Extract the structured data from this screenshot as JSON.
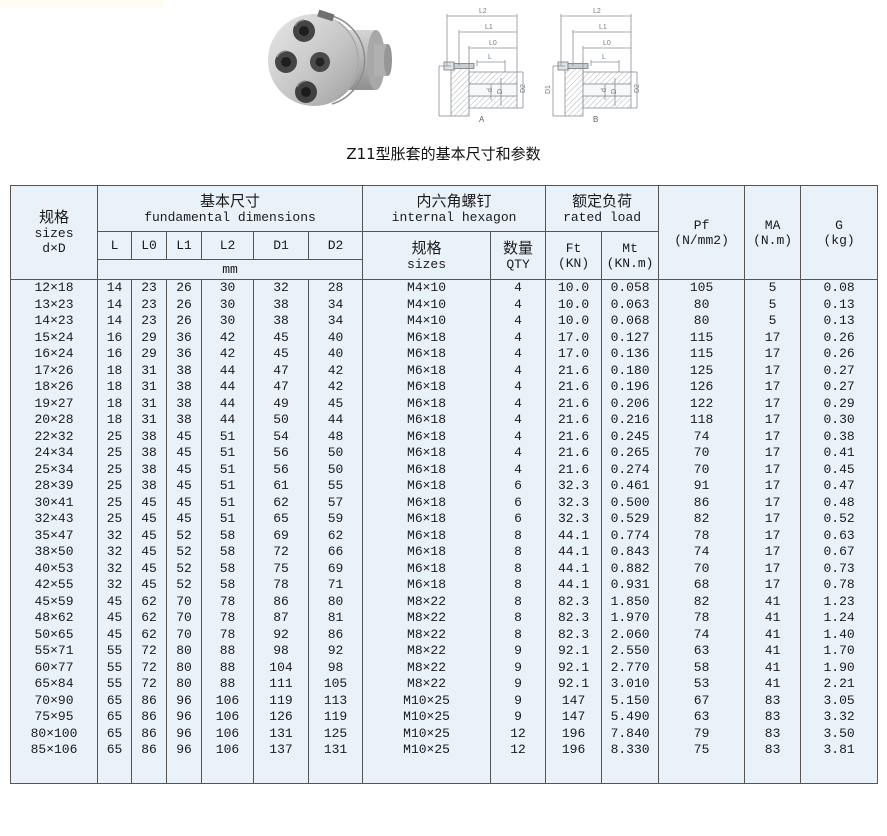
{
  "page": {
    "title": "Z11型胀套的基本尺寸和参数"
  },
  "drawing": {
    "views": [
      {
        "label": "A",
        "length_dims": [
          "L2",
          "L1",
          "L0",
          "L"
        ],
        "diameter_dims": [
          "D1",
          "d",
          "D",
          "D2"
        ]
      },
      {
        "label": "B",
        "length_dims": [
          "L2",
          "L1",
          "L0",
          "L"
        ],
        "diameter_dims": [
          "D1",
          "d",
          "D",
          "D2"
        ]
      }
    ]
  },
  "table": {
    "headers": {
      "spec_lines": [
        "规格",
        "sizes",
        "d×D"
      ],
      "basic_cn": "基本尺寸",
      "basic_en": "fundamental dimensions",
      "hex_cn": "内六角螺钉",
      "hex_en": "internal hexagon",
      "load_cn": "额定负荷",
      "load_en": "rated load",
      "pf_lines": [
        "Pf",
        "(N/mm2)"
      ],
      "ma_lines": [
        "MA",
        "(N.m)"
      ],
      "g_lines": [
        "G",
        "(kg)"
      ],
      "dims": [
        "L",
        "L0",
        "L1",
        "L2",
        "D1",
        "D2"
      ],
      "unit": "mm",
      "screw_spec_lines": [
        "规格",
        "sizes"
      ],
      "qty_lines": [
        "数量",
        "QTY"
      ],
      "ft_lines": [
        "Ft",
        "(KN)"
      ],
      "mt_lines": [
        "Mt",
        "(KN.m)"
      ]
    },
    "rows": [
      [
        "12×18",
        "14",
        "23",
        "26",
        "30",
        "32",
        "28",
        "M4×10",
        "4",
        "10.0",
        "0.058",
        "105",
        "5",
        "0.08"
      ],
      [
        "13×23",
        "14",
        "23",
        "26",
        "30",
        "38",
        "34",
        "M4×10",
        "4",
        "10.0",
        "0.063",
        "80",
        "5",
        "0.13"
      ],
      [
        "14×23",
        "14",
        "23",
        "26",
        "30",
        "38",
        "34",
        "M4×10",
        "4",
        "10.0",
        "0.068",
        "80",
        "5",
        "0.13"
      ],
      [
        "15×24",
        "16",
        "29",
        "36",
        "42",
        "45",
        "40",
        "M6×18",
        "4",
        "17.0",
        "0.127",
        "115",
        "17",
        "0.26"
      ],
      [
        "16×24",
        "16",
        "29",
        "36",
        "42",
        "45",
        "40",
        "M6×18",
        "4",
        "17.0",
        "0.136",
        "115",
        "17",
        "0.26"
      ],
      [
        "17×26",
        "18",
        "31",
        "38",
        "44",
        "47",
        "42",
        "M6×18",
        "4",
        "21.6",
        "0.180",
        "125",
        "17",
        "0.27"
      ],
      [
        "18×26",
        "18",
        "31",
        "38",
        "44",
        "47",
        "42",
        "M6×18",
        "4",
        "21.6",
        "0.196",
        "126",
        "17",
        "0.27"
      ],
      [
        "19×27",
        "18",
        "31",
        "38",
        "44",
        "49",
        "45",
        "M6×18",
        "4",
        "21.6",
        "0.206",
        "122",
        "17",
        "0.29"
      ],
      [
        "20×28",
        "18",
        "31",
        "38",
        "44",
        "50",
        "44",
        "M6×18",
        "4",
        "21.6",
        "0.216",
        "118",
        "17",
        "0.30"
      ],
      [
        "22×32",
        "25",
        "38",
        "45",
        "51",
        "54",
        "48",
        "M6×18",
        "4",
        "21.6",
        "0.245",
        "74",
        "17",
        "0.38"
      ],
      [
        "24×34",
        "25",
        "38",
        "45",
        "51",
        "56",
        "50",
        "M6×18",
        "4",
        "21.6",
        "0.265",
        "70",
        "17",
        "0.41"
      ],
      [
        "25×34",
        "25",
        "38",
        "45",
        "51",
        "56",
        "50",
        "M6×18",
        "4",
        "21.6",
        "0.274",
        "70",
        "17",
        "0.45"
      ],
      [
        "28×39",
        "25",
        "38",
        "45",
        "51",
        "61",
        "55",
        "M6×18",
        "6",
        "32.3",
        "0.461",
        "91",
        "17",
        "0.47"
      ],
      [
        "30×41",
        "25",
        "45",
        "45",
        "51",
        "62",
        "57",
        "M6×18",
        "6",
        "32.3",
        "0.500",
        "86",
        "17",
        "0.48"
      ],
      [
        "32×43",
        "25",
        "45",
        "45",
        "51",
        "65",
        "59",
        "M6×18",
        "6",
        "32.3",
        "0.529",
        "82",
        "17",
        "0.52"
      ],
      [
        "35×47",
        "32",
        "45",
        "52",
        "58",
        "69",
        "62",
        "M6×18",
        "8",
        "44.1",
        "0.774",
        "78",
        "17",
        "0.63"
      ],
      [
        "38×50",
        "32",
        "45",
        "52",
        "58",
        "72",
        "66",
        "M6×18",
        "8",
        "44.1",
        "0.843",
        "74",
        "17",
        "0.67"
      ],
      [
        "40×53",
        "32",
        "45",
        "52",
        "58",
        "75",
        "69",
        "M6×18",
        "8",
        "44.1",
        "0.882",
        "70",
        "17",
        "0.73"
      ],
      [
        "42×55",
        "32",
        "45",
        "52",
        "58",
        "78",
        "71",
        "M6×18",
        "8",
        "44.1",
        "0.931",
        "68",
        "17",
        "0.78"
      ],
      [
        "45×59",
        "45",
        "62",
        "70",
        "78",
        "86",
        "80",
        "M8×22",
        "8",
        "82.3",
        "1.850",
        "82",
        "41",
        "1.23"
      ],
      [
        "48×62",
        "45",
        "62",
        "70",
        "78",
        "87",
        "81",
        "M8×22",
        "8",
        "82.3",
        "1.970",
        "78",
        "41",
        "1.24"
      ],
      [
        "50×65",
        "45",
        "62",
        "70",
        "78",
        "92",
        "86",
        "M8×22",
        "8",
        "82.3",
        "2.060",
        "74",
        "41",
        "1.40"
      ],
      [
        "55×71",
        "55",
        "72",
        "80",
        "88",
        "98",
        "92",
        "M8×22",
        "9",
        "92.1",
        "2.550",
        "63",
        "41",
        "1.70"
      ],
      [
        "60×77",
        "55",
        "72",
        "80",
        "88",
        "104",
        "98",
        "M8×22",
        "9",
        "92.1",
        "2.770",
        "58",
        "41",
        "1.90"
      ],
      [
        "65×84",
        "55",
        "72",
        "80",
        "88",
        "111",
        "105",
        "M8×22",
        "9",
        "92.1",
        "3.010",
        "53",
        "41",
        "2.21"
      ],
      [
        "70×90",
        "65",
        "86",
        "96",
        "106",
        "119",
        "113",
        "M10×25",
        "9",
        "147",
        "5.150",
        "67",
        "83",
        "3.05"
      ],
      [
        "75×95",
        "65",
        "86",
        "96",
        "106",
        "126",
        "119",
        "M10×25",
        "9",
        "147",
        "5.490",
        "63",
        "83",
        "3.32"
      ],
      [
        "80×100",
        "65",
        "86",
        "96",
        "106",
        "131",
        "125",
        "M10×25",
        "12",
        "196",
        "7.840",
        "79",
        "83",
        "3.50"
      ],
      [
        "85×106",
        "65",
        "86",
        "96",
        "106",
        "137",
        "131",
        "M10×25",
        "12",
        "196",
        "8.330",
        "75",
        "83",
        "3.81"
      ]
    ]
  },
  "colors": {
    "table_bg": "#eaf2f9",
    "table_border": "#555555",
    "drawing_line": "#8a9096",
    "photo_body": "#c9c9c9",
    "screw_dark": "#3c3c3c"
  }
}
